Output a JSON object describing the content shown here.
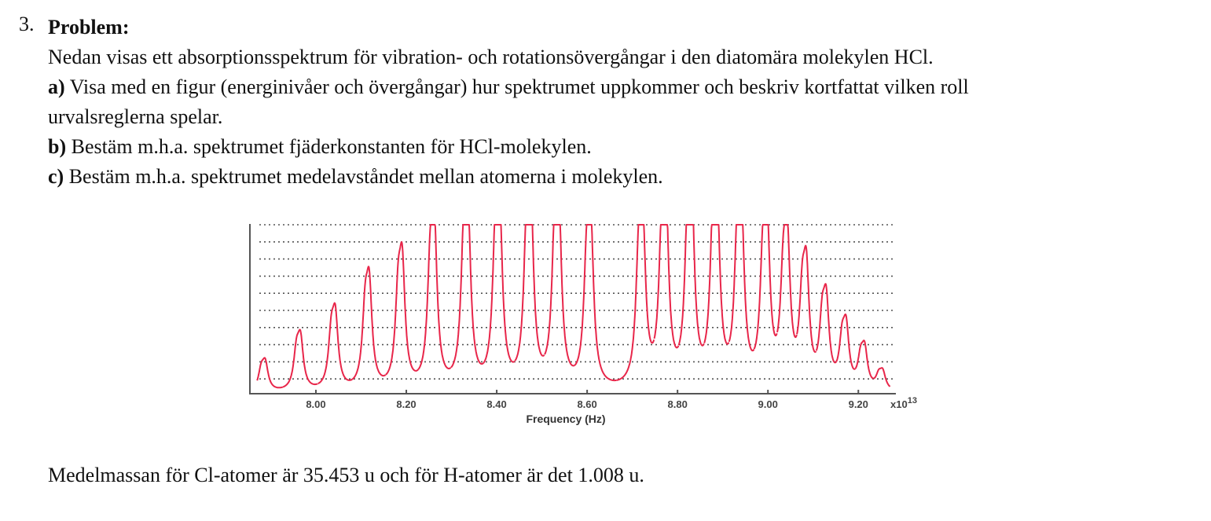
{
  "problem": {
    "number": "3.",
    "title": "Problem:",
    "intro": "Nedan visas ett absorptionsspektrum för vibration- och rotationsövergångar i den diatomära molekylen HCl.",
    "parts": [
      {
        "label": "a)",
        "text": "Visa med en figur (energinivåer och övergångar) hur spektrumet uppkommer och beskriv kortfattat vilken roll",
        "text2": "urvalsreglerna spelar."
      },
      {
        "label": "b)",
        "text": "Bestäm m.h.a. spektrumet fjäderkonstanten för HCl-molekylen."
      },
      {
        "label": "c)",
        "text": "Bestäm m.h.a. spektrumet medelavståndet mellan atomerna i molekylen."
      }
    ],
    "footer": "Medelmassan för Cl-atomer är 35.453 u och för H-atomer är det 1.008 u."
  },
  "chart_data": {
    "type": "line",
    "title": "",
    "xlabel": "Frequency (Hz)",
    "x_multiplier": "x10",
    "x_exponent": "13",
    "ylabel": "",
    "xlim": [
      7.854,
      9.283
    ],
    "ylim": [
      0,
      10.1
    ],
    "grid": "horizontal dotted",
    "x_ticks": [
      {
        "value": 8.0,
        "label": "8.00"
      },
      {
        "value": 8.2,
        "label": "8.20"
      },
      {
        "value": 8.4,
        "label": "8.40"
      },
      {
        "value": 8.6,
        "label": "8.60"
      },
      {
        "value": 8.8,
        "label": "8.80"
      },
      {
        "value": 9.0,
        "label": "9.00"
      },
      {
        "value": 9.2,
        "label": "9.20"
      }
    ],
    "y_gridlines": [
      1,
      2,
      3,
      4,
      5,
      6,
      7,
      8,
      9,
      10
    ],
    "line_color": "#e8264a",
    "isotope_shift": -0.009,
    "isotope_ratio": 0.75,
    "peaks": [
      {
        "x": 7.888,
        "y": 1.48
      },
      {
        "x": 7.966,
        "y": 2.67
      },
      {
        "x": 8.043,
        "y": 3.78
      },
      {
        "x": 8.118,
        "y": 5.32
      },
      {
        "x": 8.191,
        "y": 6.33
      },
      {
        "x": 8.262,
        "y": 8.01
      },
      {
        "x": 8.336,
        "y": 9.04
      },
      {
        "x": 8.406,
        "y": 9.22
      },
      {
        "x": 8.475,
        "y": 9.54
      },
      {
        "x": 8.537,
        "y": 9.17
      },
      {
        "x": 8.608,
        "y": 8.21
      },
      {
        "x": 8.723,
        "y": 8.21
      },
      {
        "x": 8.774,
        "y": 9.22
      },
      {
        "x": 8.831,
        "y": 9.54
      },
      {
        "x": 8.887,
        "y": 9.45
      },
      {
        "x": 8.941,
        "y": 8.9
      },
      {
        "x": 8.998,
        "y": 8.13
      },
      {
        "x": 9.043,
        "y": 7.14
      },
      {
        "x": 9.085,
        "y": 5.81
      },
      {
        "x": 9.129,
        "y": 4.28
      },
      {
        "x": 9.173,
        "y": 3.06
      },
      {
        "x": 9.214,
        "y": 2.02
      },
      {
        "x": 9.254,
        "y": 0.92
      }
    ]
  }
}
